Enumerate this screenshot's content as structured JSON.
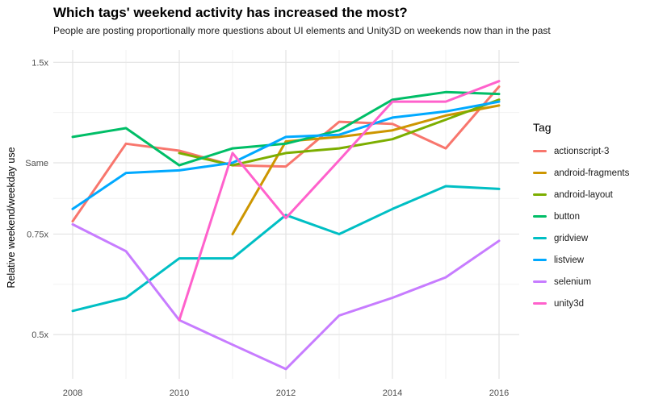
{
  "chart_data": {
    "type": "line",
    "title": "Which tags' weekend activity has increased the most?",
    "subtitle": "People are posting proportionally more questions about UI elements and Unity3D on weekends now than in the past",
    "xlabel": "",
    "ylabel": "Relative weekend/weekday use",
    "y_scale": "log",
    "x_range": [
      2008,
      2016
    ],
    "x_major_ticks": [
      2008,
      2010,
      2012,
      2014,
      2016
    ],
    "x_minor_ticks": [
      2009,
      2011,
      2013,
      2015
    ],
    "y_ticks": [
      {
        "value": 1.5,
        "label": "1.5x"
      },
      {
        "value": 1.0,
        "label": "Same"
      },
      {
        "value": 0.75,
        "label": "0.75x"
      },
      {
        "value": 0.5,
        "label": "0.5x"
      }
    ],
    "y_minor_ticks": [
      1.2247,
      0.866,
      0.6124
    ],
    "grid": true,
    "legend_position": "right",
    "legend_title": "Tag",
    "series": [
      {
        "name": "actionscript-3",
        "color": "#F8766D",
        "points": [
          [
            2008,
            0.79
          ],
          [
            2009,
            1.08
          ],
          [
            2010,
            1.05
          ],
          [
            2011,
            0.99
          ],
          [
            2012,
            0.985
          ],
          [
            2013,
            1.18
          ],
          [
            2014,
            1.17
          ],
          [
            2015,
            1.06
          ],
          [
            2016,
            1.36
          ]
        ]
      },
      {
        "name": "android-fragments",
        "color": "#CD9600",
        "points": [
          [
            2011,
            0.75
          ],
          [
            2012,
            1.09
          ],
          [
            2013,
            1.11
          ],
          [
            2014,
            1.14
          ],
          [
            2015,
            1.21
          ],
          [
            2016,
            1.26
          ]
        ]
      },
      {
        "name": "android-layout",
        "color": "#7CAE00",
        "points": [
          [
            2010,
            1.04
          ],
          [
            2011,
            0.99
          ],
          [
            2012,
            1.04
          ],
          [
            2013,
            1.06
          ],
          [
            2014,
            1.1
          ],
          [
            2015,
            1.19
          ],
          [
            2016,
            1.29
          ]
        ]
      },
      {
        "name": "button",
        "color": "#00BE67",
        "points": [
          [
            2008,
            1.11
          ],
          [
            2009,
            1.15
          ],
          [
            2010,
            0.99
          ],
          [
            2011,
            1.06
          ],
          [
            2012,
            1.08
          ],
          [
            2013,
            1.14
          ],
          [
            2014,
            1.29
          ],
          [
            2015,
            1.33
          ],
          [
            2016,
            1.32
          ]
        ]
      },
      {
        "name": "gridview",
        "color": "#00BFC4",
        "points": [
          [
            2008,
            0.55
          ],
          [
            2009,
            0.58
          ],
          [
            2010,
            0.68
          ],
          [
            2011,
            0.68
          ],
          [
            2012,
            0.81
          ],
          [
            2013,
            0.75
          ],
          [
            2014,
            0.83
          ],
          [
            2015,
            0.91
          ],
          [
            2016,
            0.9
          ]
        ]
      },
      {
        "name": "listview",
        "color": "#00A9FF",
        "points": [
          [
            2008,
            0.83
          ],
          [
            2009,
            0.96
          ],
          [
            2010,
            0.97
          ],
          [
            2011,
            1.0
          ],
          [
            2012,
            1.11
          ],
          [
            2013,
            1.12
          ],
          [
            2014,
            1.2
          ],
          [
            2015,
            1.23
          ],
          [
            2016,
            1.28
          ]
        ]
      },
      {
        "name": "selenium",
        "color": "#C77CFF",
        "points": [
          [
            2008,
            0.78
          ],
          [
            2009,
            0.7
          ],
          [
            2010,
            0.53
          ],
          [
            2011,
            0.48
          ],
          [
            2012,
            0.435
          ],
          [
            2013,
            0.54
          ],
          [
            2014,
            0.58
          ],
          [
            2015,
            0.63
          ],
          [
            2016,
            0.73
          ]
        ]
      },
      {
        "name": "unity3d",
        "color": "#FF61CC",
        "points": [
          [
            2010,
            0.53
          ],
          [
            2011,
            1.04
          ],
          [
            2012,
            0.8
          ],
          [
            2013,
            1.01
          ],
          [
            2014,
            1.28
          ],
          [
            2015,
            1.28
          ],
          [
            2016,
            1.39
          ]
        ]
      }
    ]
  }
}
